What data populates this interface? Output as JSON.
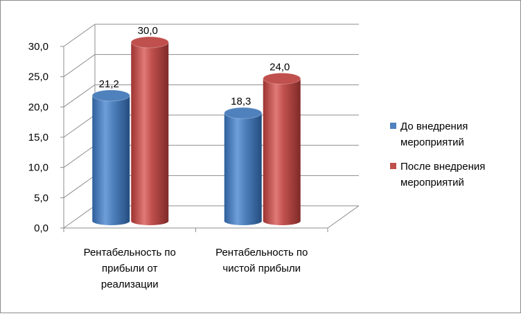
{
  "chart_data": {
    "type": "bar",
    "style": "3d-cylinder",
    "categories": [
      [
        "Рентабельность по",
        "прибыли от",
        "реализации"
      ],
      [
        "Рентабельность по",
        "чистой прибыли"
      ]
    ],
    "series": [
      {
        "name": [
          "До внедрения",
          "мероприятий"
        ],
        "values": [
          21.2,
          18.3
        ],
        "labels": [
          "21,2",
          "18,3"
        ],
        "color": "#4f81bd"
      },
      {
        "name": [
          "После внедрения",
          "мероприятий"
        ],
        "values": [
          30.0,
          24.0
        ],
        "labels": [
          "30,0",
          "24,0"
        ],
        "color": "#c0504d"
      }
    ],
    "yticks": [
      "0,0",
      "5,0",
      "10,0",
      "15,0",
      "20,0",
      "25,0",
      "30,0"
    ],
    "ylim": [
      0,
      30
    ],
    "grid": true,
    "legend": "right"
  }
}
